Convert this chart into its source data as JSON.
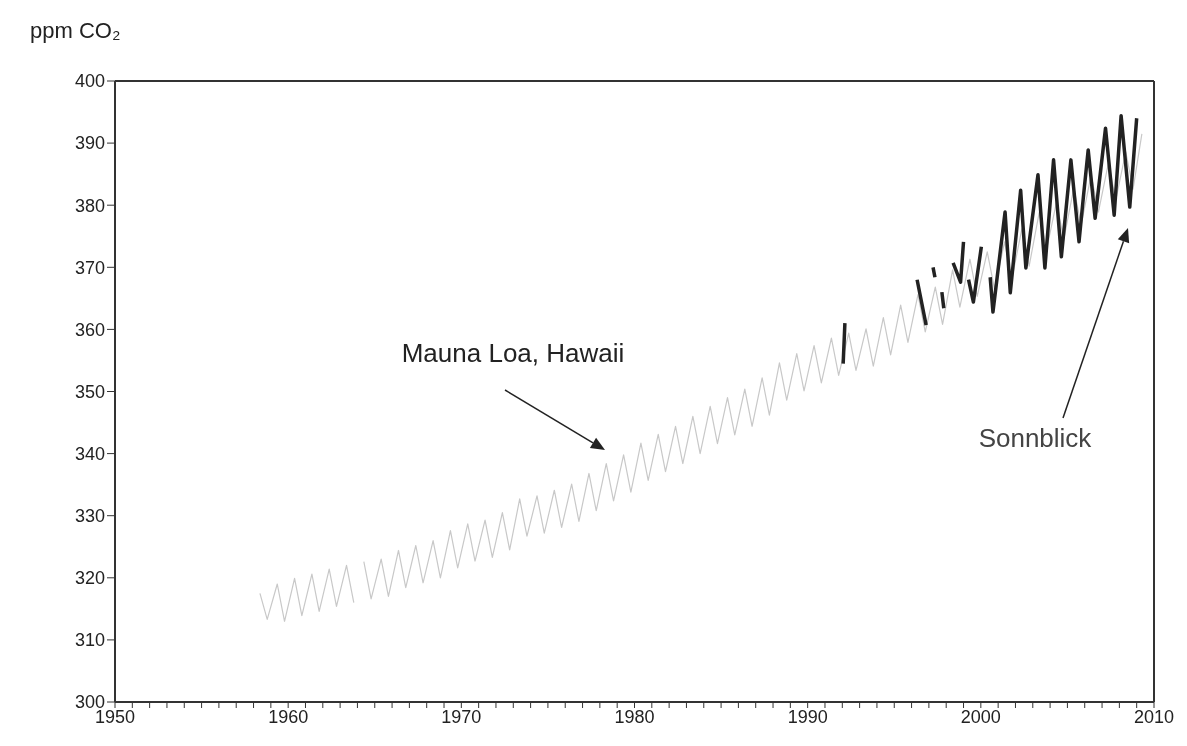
{
  "chart_data": {
    "type": "line",
    "ylabel": "ppm CO₂",
    "annotations": [
      "Mauna Loa, Hawaii",
      "Sonnblick"
    ],
    "series": [
      {
        "color": "#c8c8c8",
        "x": [
          1958.37,
          1958.79,
          1959.37,
          1959.79,
          1960.37,
          1960.79,
          1961.37,
          1961.79,
          1962.37,
          1962.79,
          1963.37,
          1963.79,
          1964.0,
          1964.37,
          1964.79,
          1965.37,
          1965.79,
          1966.37,
          1966.79,
          1967.37,
          1967.79,
          1968.37,
          1968.79,
          1969.37,
          1969.79,
          1970.37,
          1970.79,
          1971.37,
          1971.79,
          1972.37,
          1972.79,
          1973.37,
          1973.79,
          1974.37,
          1974.79,
          1975.37,
          1975.79,
          1976.37,
          1976.79,
          1977.37,
          1977.79,
          1978.37,
          1978.79,
          1979.37,
          1979.79,
          1980.37,
          1980.79,
          1981.37,
          1981.79,
          1982.37,
          1982.79,
          1983.37,
          1983.79,
          1984.37,
          1984.79,
          1985.37,
          1985.79,
          1986.37,
          1986.79,
          1987.37,
          1987.79,
          1988.37,
          1988.79,
          1989.37,
          1989.79,
          1990.37,
          1990.79,
          1991.37,
          1991.79,
          1992.37,
          1992.79,
          1993.37,
          1993.79,
          1994.37,
          1994.79,
          1995.37,
          1995.79,
          1996.37,
          1996.79,
          1997.37,
          1997.79,
          1998.37,
          1998.79,
          1999.37,
          1999.79,
          2000.37,
          2000.79,
          2001.37,
          2001.79,
          2002.37,
          2002.79,
          2003.37,
          2003.79,
          2004.37,
          2004.79,
          2005.37,
          2005.79,
          2006.37,
          2006.79,
          2007.37,
          2007.79,
          2008.37,
          2008.79,
          2009.3
        ],
        "values": [
          317.5,
          313.3,
          319.0,
          313.0,
          319.9,
          313.9,
          320.6,
          314.6,
          321.4,
          315.4,
          322.0,
          316.0,
          null,
          322.6,
          316.6,
          323.0,
          317.0,
          324.4,
          318.4,
          325.2,
          319.2,
          326.0,
          320.0,
          327.6,
          321.6,
          328.7,
          322.7,
          329.3,
          323.3,
          330.5,
          324.5,
          332.7,
          326.7,
          333.2,
          327.2,
          334.1,
          328.1,
          335.1,
          329.1,
          336.8,
          330.8,
          338.4,
          332.4,
          339.8,
          333.8,
          341.7,
          335.7,
          343.1,
          337.1,
          344.4,
          338.4,
          346.0,
          340.0,
          347.6,
          341.6,
          349.0,
          343.0,
          350.4,
          344.4,
          352.2,
          346.2,
          354.6,
          348.6,
          356.1,
          350.1,
          357.4,
          351.4,
          358.6,
          352.6,
          359.4,
          353.4,
          360.1,
          354.1,
          361.9,
          355.9,
          363.9,
          357.9,
          365.6,
          359.6,
          366.8,
          360.8,
          369.6,
          363.6,
          371.3,
          365.3,
          372.5,
          366.5,
          374.1,
          368.1,
          376.2,
          370.2,
          378.8,
          372.8,
          380.5,
          374.5,
          382.8,
          376.8,
          384.9,
          378.9,
          386.8,
          380.8,
          388.6,
          382.6,
          391.5
        ]
      },
      {
        "color": "#222222",
        "x": [
          1992.05,
          1992.15,
          1992.2,
          1996.32,
          1996.84,
          1997.0,
          1997.24,
          1997.35,
          1997.5,
          1997.75,
          1997.86,
          1998.1,
          1998.4,
          1998.83,
          1999.0,
          1999.1,
          1999.29,
          1999.57,
          2000.03,
          2000.3,
          2000.54,
          2000.7,
          2001.4,
          2001.7,
          2002.3,
          2002.6,
          2003.3,
          2003.7,
          2004.2,
          2004.65,
          2005.2,
          2005.67,
          2005.95,
          2006.2,
          2006.6,
          2007.2,
          2007.7,
          2008.1,
          2008.6,
          2009.0
        ],
        "values": [
          354.5,
          361.0,
          null,
          368.0,
          360.7,
          null,
          370.0,
          368.4,
          null,
          366.0,
          363.4,
          null,
          370.7,
          367.6,
          374.1,
          null,
          368.0,
          364.4,
          373.3,
          null,
          368.4,
          362.8,
          378.9,
          365.9,
          382.4,
          369.9,
          384.9,
          369.9,
          387.3,
          371.7,
          387.3,
          374.1,
          382.1,
          388.9,
          377.9,
          392.4,
          378.4,
          394.4,
          379.7,
          394.0
        ]
      }
    ],
    "xlim": [
      1950,
      2010
    ],
    "xticks": [
      1950,
      {
        "value": 1951,
        "label": null
      },
      {
        "value": 1952,
        "label": null
      },
      {
        "value": 1953,
        "label": null
      },
      {
        "value": 1954,
        "label": null
      },
      {
        "value": 1955,
        "label": null
      },
      {
        "value": 1956,
        "label": null
      },
      {
        "value": 1957,
        "label": null
      },
      {
        "value": 1958,
        "label": null
      },
      {
        "value": 1959,
        "label": null
      },
      1960,
      {
        "value": 1961,
        "label": null
      },
      {
        "value": 1962,
        "label": null
      },
      {
        "value": 1963,
        "label": null
      },
      {
        "value": 1964,
        "label": null
      },
      {
        "value": 1965,
        "label": null
      },
      {
        "value": 1966,
        "label": null
      },
      {
        "value": 1967,
        "label": null
      },
      {
        "value": 1968,
        "label": null
      },
      {
        "value": 1969,
        "label": null
      },
      1970,
      {
        "value": 1971,
        "label": null
      },
      {
        "value": 1972,
        "label": null
      },
      {
        "value": 1973,
        "label": null
      },
      {
        "value": 1974,
        "label": null
      },
      {
        "value": 1975,
        "label": null
      },
      {
        "value": 1976,
        "label": null
      },
      {
        "value": 1977,
        "label": null
      },
      {
        "value": 1978,
        "label": null
      },
      {
        "value": 1979,
        "label": null
      },
      1980,
      {
        "value": 1981,
        "label": null
      },
      {
        "value": 1982,
        "label": null
      },
      {
        "value": 1983,
        "label": null
      },
      {
        "value": 1984,
        "label": null
      },
      {
        "value": 1985,
        "label": null
      },
      {
        "value": 1986,
        "label": null
      },
      {
        "value": 1987,
        "label": null
      },
      {
        "value": 1988,
        "label": null
      },
      {
        "value": 1989,
        "label": null
      },
      1990,
      {
        "value": 1991,
        "label": null
      },
      {
        "value": 1992,
        "label": null
      },
      {
        "value": 1993,
        "label": null
      },
      {
        "value": 1994,
        "label": null
      },
      {
        "value": 1995,
        "label": null
      },
      {
        "value": 1996,
        "label": null
      },
      {
        "value": 1997,
        "label": null
      },
      {
        "value": 1998,
        "label": null
      },
      {
        "value": 1999,
        "label": null
      },
      2000,
      {
        "value": 2001,
        "label": null
      },
      {
        "value": 2002,
        "label": null
      },
      {
        "value": 2003,
        "label": null
      },
      {
        "value": 2004,
        "label": null
      },
      {
        "value": 2005,
        "label": null
      },
      {
        "value": 2006,
        "label": null
      },
      {
        "value": 2007,
        "label": null
      },
      {
        "value": 2008,
        "label": null
      },
      {
        "value": 2009,
        "label": null
      },
      2010
    ],
    "ylim": [
      300,
      400
    ],
    "yticks": [
      300,
      310,
      320,
      330,
      340,
      350,
      360,
      370,
      380,
      390,
      400
    ],
    "grid": false,
    "legend": false,
    "marker": "none",
    "line_style": "solid"
  }
}
